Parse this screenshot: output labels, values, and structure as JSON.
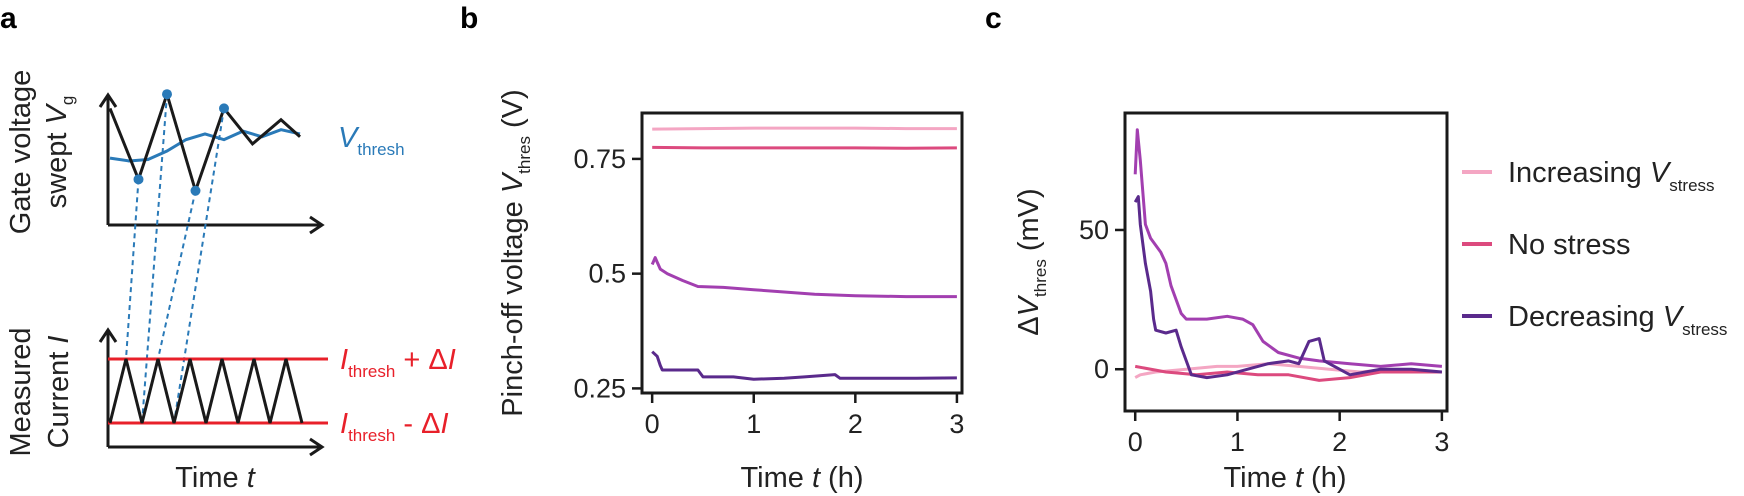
{
  "chart_data": [
    {
      "panel": "a",
      "type": "diagram",
      "top": {
        "ylabel_line1": "Gate voltage",
        "ylabel_line2_text": "swept ",
        "ylabel_line2_var": "V",
        "ylabel_line2_sub": "g",
        "legend_var": "V",
        "legend_sub": "thresh",
        "vg_points": [
          [
            0.0,
            0.8
          ],
          [
            0.15,
            0.3
          ],
          [
            0.3,
            0.9
          ],
          [
            0.45,
            0.22
          ],
          [
            0.6,
            0.8
          ],
          [
            0.75,
            0.55
          ],
          [
            0.9,
            0.72
          ],
          [
            1.0,
            0.6
          ]
        ],
        "vthresh_points": [
          [
            0.0,
            0.45
          ],
          [
            0.1,
            0.43
          ],
          [
            0.2,
            0.44
          ],
          [
            0.3,
            0.5
          ],
          [
            0.4,
            0.58
          ],
          [
            0.5,
            0.62
          ],
          [
            0.6,
            0.58
          ],
          [
            0.7,
            0.64
          ],
          [
            0.8,
            0.6
          ],
          [
            0.9,
            0.65
          ],
          [
            1.0,
            0.62
          ]
        ]
      },
      "bottom": {
        "ylabel_line1": "Measured",
        "ylabel_line2_text": "Current ",
        "ylabel_line2_var": "I",
        "xlabel_text": "Time ",
        "xlabel_var": "t",
        "upper_label_var": "I",
        "upper_label_sub": "thresh",
        "upper_label_tail": " + Δ",
        "upper_label_tail_var": "I",
        "lower_label_var": "I",
        "lower_label_sub": "thresh",
        "lower_label_tail": " - Δ",
        "lower_label_tail_var": "I",
        "triangle_peaks": 6
      },
      "colors": {
        "signal": "#1a1a1a",
        "vthresh": "#2a7ab8",
        "ithresh": "#e8202a",
        "marker": "#2a7ab8"
      }
    },
    {
      "panel": "b",
      "type": "line",
      "xlabel_text": "Time ",
      "xlabel_var": "t",
      "xlabel_unit": " (h)",
      "ylabel_text": "Pinch-off voltage ",
      "ylabel_var": "V",
      "ylabel_sub": "thres",
      "ylabel_unit": " (V)",
      "xlim": [
        -0.1,
        3.05
      ],
      "ylim": [
        0.24,
        0.85
      ],
      "xticks": [
        0,
        1,
        2,
        3
      ],
      "ytick_values": [
        0.25,
        0.5,
        0.75
      ],
      "ytick_labels": [
        "0.25",
        "0.5",
        "0.75"
      ],
      "series": [
        {
          "key": "increasing",
          "color": "#f4a6c3",
          "points": [
            [
              0,
              0.815
            ],
            [
              0.5,
              0.816
            ],
            [
              1,
              0.817
            ],
            [
              1.5,
              0.817
            ],
            [
              2,
              0.817
            ],
            [
              2.5,
              0.816
            ],
            [
              3,
              0.816
            ]
          ]
        },
        {
          "key": "nostress",
          "color": "#dc4a7e",
          "points": [
            [
              0,
              0.775
            ],
            [
              0.5,
              0.774
            ],
            [
              1,
              0.774
            ],
            [
              1.5,
              0.774
            ],
            [
              2,
              0.774
            ],
            [
              2.5,
              0.773
            ],
            [
              3,
              0.774
            ]
          ]
        },
        {
          "key": "decreasing_mid",
          "color": "#a23fb0",
          "points": [
            [
              0,
              0.52
            ],
            [
              0.03,
              0.535
            ],
            [
              0.08,
              0.51
            ],
            [
              0.15,
              0.5
            ],
            [
              0.3,
              0.485
            ],
            [
              0.45,
              0.472
            ],
            [
              0.7,
              0.47
            ],
            [
              1,
              0.465
            ],
            [
              1.3,
              0.46
            ],
            [
              1.6,
              0.455
            ],
            [
              2,
              0.452
            ],
            [
              2.5,
              0.45
            ],
            [
              3,
              0.45
            ]
          ]
        },
        {
          "key": "decreasing_low",
          "color": "#5a2a8c",
          "points": [
            [
              0,
              0.33
            ],
            [
              0.05,
              0.32
            ],
            [
              0.08,
              0.3
            ],
            [
              0.1,
              0.29
            ],
            [
              0.12,
              0.29
            ],
            [
              0.45,
              0.29
            ],
            [
              0.5,
              0.275
            ],
            [
              0.8,
              0.275
            ],
            [
              1,
              0.27
            ],
            [
              1.3,
              0.272
            ],
            [
              1.5,
              0.275
            ],
            [
              1.8,
              0.28
            ],
            [
              1.85,
              0.272
            ],
            [
              2.2,
              0.272
            ],
            [
              2.6,
              0.272
            ],
            [
              3,
              0.273
            ]
          ]
        }
      ]
    },
    {
      "panel": "c",
      "type": "line",
      "xlabel_text": "Time ",
      "xlabel_var": "t",
      "xlabel_unit": " (h)",
      "ylabel_text": "Δ",
      "ylabel_var": "V",
      "ylabel_sub": "thres",
      "ylabel_unit": " (mV)",
      "xlim": [
        -0.1,
        3.05
      ],
      "ylim": [
        -15,
        92
      ],
      "xticks": [
        0,
        1,
        2,
        3
      ],
      "ytick_values": [
        0,
        50
      ],
      "ytick_labels": [
        "0",
        "50"
      ],
      "series": [
        {
          "key": "increasing",
          "color": "#f4a6c3",
          "name": "Increasing ",
          "name_var": "V",
          "name_sub": "stress",
          "points": [
            [
              0,
              -3
            ],
            [
              0.05,
              -2
            ],
            [
              0.2,
              -1
            ],
            [
              0.5,
              0
            ],
            [
              0.8,
              1
            ],
            [
              1,
              1
            ],
            [
              1.3,
              2
            ],
            [
              1.6,
              1
            ],
            [
              1.9,
              0
            ],
            [
              2.2,
              -1
            ],
            [
              2.5,
              0
            ],
            [
              2.8,
              -1
            ],
            [
              3,
              -1
            ]
          ]
        },
        {
          "key": "nostress",
          "color": "#dc4a7e",
          "name": "No stress",
          "points": [
            [
              0,
              1
            ],
            [
              0.3,
              -1
            ],
            [
              0.6,
              -2
            ],
            [
              0.9,
              -1
            ],
            [
              1.2,
              -2
            ],
            [
              1.5,
              -2
            ],
            [
              1.8,
              -4
            ],
            [
              2.1,
              -3
            ],
            [
              2.4,
              -1
            ],
            [
              2.7,
              -1
            ],
            [
              3,
              -1
            ]
          ]
        },
        {
          "key": "decreasing_mid",
          "color": "#a23fb0",
          "name": "Decreasing ",
          "name_var": "V",
          "name_sub": "stress",
          "points": [
            [
              0,
              70
            ],
            [
              0.02,
              86
            ],
            [
              0.05,
              75
            ],
            [
              0.1,
              52
            ],
            [
              0.15,
              47
            ],
            [
              0.25,
              42
            ],
            [
              0.3,
              38
            ],
            [
              0.35,
              30
            ],
            [
              0.4,
              25
            ],
            [
              0.45,
              20
            ],
            [
              0.5,
              18
            ],
            [
              0.7,
              18
            ],
            [
              0.9,
              19
            ],
            [
              1.05,
              18
            ],
            [
              1.15,
              16
            ],
            [
              1.25,
              10
            ],
            [
              1.4,
              6
            ],
            [
              1.6,
              4
            ],
            [
              1.8,
              3
            ],
            [
              2.1,
              2
            ],
            [
              2.4,
              1
            ],
            [
              2.7,
              2
            ],
            [
              3,
              1
            ]
          ]
        },
        {
          "key": "decreasing_low",
          "color": "#5a2a8c",
          "points": [
            [
              0,
              60
            ],
            [
              0.03,
              62
            ],
            [
              0.05,
              52
            ],
            [
              0.1,
              38
            ],
            [
              0.15,
              28
            ],
            [
              0.18,
              18
            ],
            [
              0.2,
              14
            ],
            [
              0.3,
              13
            ],
            [
              0.4,
              14
            ],
            [
              0.45,
              8
            ],
            [
              0.5,
              3
            ],
            [
              0.55,
              -2
            ],
            [
              0.7,
              -3
            ],
            [
              0.9,
              -2
            ],
            [
              1.1,
              0
            ],
            [
              1.3,
              2
            ],
            [
              1.5,
              3
            ],
            [
              1.6,
              2
            ],
            [
              1.7,
              10
            ],
            [
              1.8,
              11
            ],
            [
              1.85,
              3
            ],
            [
              2.1,
              -2
            ],
            [
              2.4,
              0
            ],
            [
              2.7,
              0
            ],
            [
              3,
              -1
            ]
          ]
        }
      ]
    }
  ],
  "labels": {
    "a": "a",
    "b": "b",
    "c": "c"
  }
}
